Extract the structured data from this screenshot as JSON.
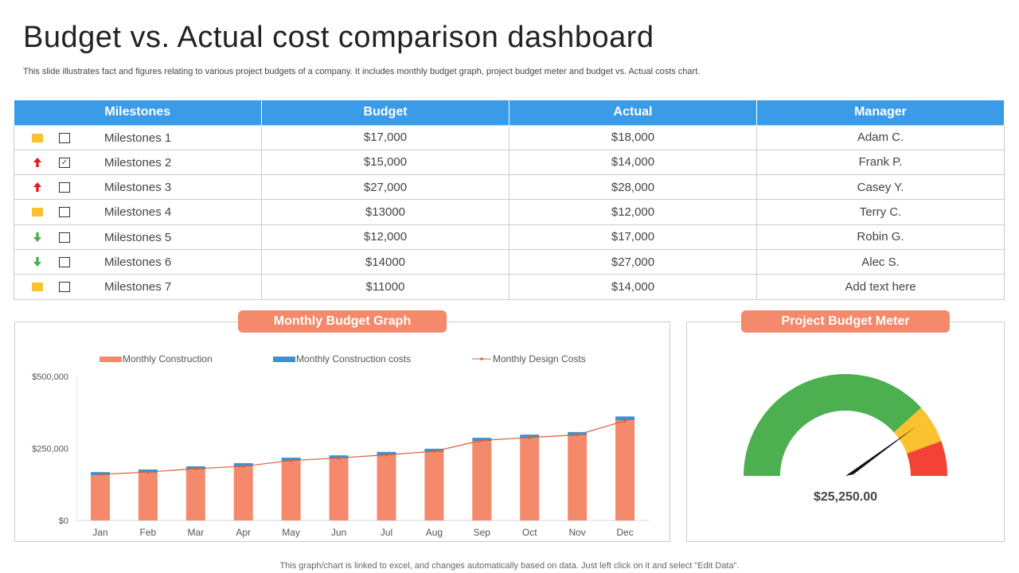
{
  "title": "Budget vs. Actual cost comparison dashboard",
  "subtitle": "This slide illustrates fact and figures relating to various project budgets of a company. It includes monthly budget graph, project budget meter and budget vs.  Actual costs chart.",
  "table": {
    "headers": [
      "Milestones",
      "Budget",
      "Actual",
      "Manager"
    ],
    "rows": [
      {
        "indicator": "yellow-square",
        "checked": false,
        "milestone": "Milestones 1",
        "budget": "$17,000",
        "actual": "$18,000",
        "manager": "Adam C."
      },
      {
        "indicator": "red-up-arrow",
        "checked": true,
        "milestone": "Milestones 2",
        "budget": "$15,000",
        "actual": "$14,000",
        "manager": "Frank P."
      },
      {
        "indicator": "red-up-arrow",
        "checked": false,
        "milestone": "Milestones 3",
        "budget": "$27,000",
        "actual": "$28,000",
        "manager": "Casey Y."
      },
      {
        "indicator": "yellow-square",
        "checked": false,
        "milestone": "Milestones 4",
        "budget": "$13000",
        "actual": "$12,000",
        "manager": "Terry C."
      },
      {
        "indicator": "green-down-arrow",
        "checked": false,
        "milestone": "Milestones 5",
        "budget": "$12,000",
        "actual": "$17,000",
        "manager": "Robin G."
      },
      {
        "indicator": "green-down-arrow",
        "checked": false,
        "milestone": "Milestones 6",
        "budget": "$14000",
        "actual": "$27,000",
        "manager": "Alec S."
      },
      {
        "indicator": "yellow-square",
        "checked": false,
        "milestone": "Milestones 7",
        "budget": "$11000",
        "actual": "$14,000",
        "manager": "Add text here"
      }
    ]
  },
  "monthly_title": "Monthly Budget Graph",
  "meter_title": "Project Budget Meter",
  "meter_value": "$25,250.00",
  "meter_needle_fraction": 0.8,
  "colors": {
    "header": "#3a9be8",
    "orange": "#f4896b",
    "blue": "#3f8fd2",
    "line": "#d9603a",
    "green": "#4caf50",
    "yellow": "#f9c22e",
    "red": "#f44336"
  },
  "chart_data": {
    "type": "bar",
    "stacked": true,
    "categories": [
      "Jan",
      "Feb",
      "Mar",
      "Apr",
      "May",
      "Jun",
      "Jul",
      "Aug",
      "Sep",
      "Oct",
      "Nov",
      "Dec"
    ],
    "series": [
      {
        "name": "Monthly Construction",
        "type": "bar",
        "values": [
          157000,
          166000,
          177000,
          188000,
          207000,
          215000,
          227000,
          238000,
          276000,
          287000,
          296000,
          348000
        ]
      },
      {
        "name": "Monthly Construction costs",
        "type": "bar",
        "values": [
          11000,
          11000,
          11000,
          11000,
          11000,
          11000,
          11000,
          11000,
          11000,
          11000,
          11000,
          13000
        ]
      },
      {
        "name": "Monthly Design Costs",
        "type": "line",
        "values": [
          160000,
          168000,
          180000,
          188000,
          208000,
          217000,
          228000,
          240000,
          278000,
          288000,
          297000,
          346000
        ]
      }
    ],
    "yticks": [
      "$0",
      "$250,000",
      "$500,000"
    ],
    "ylim": [
      0,
      500000
    ],
    "legend": "top"
  },
  "footer": "This graph/chart is linked to excel,  and changes automatically based on data. Just left click on it and select \"Edit Data\"."
}
